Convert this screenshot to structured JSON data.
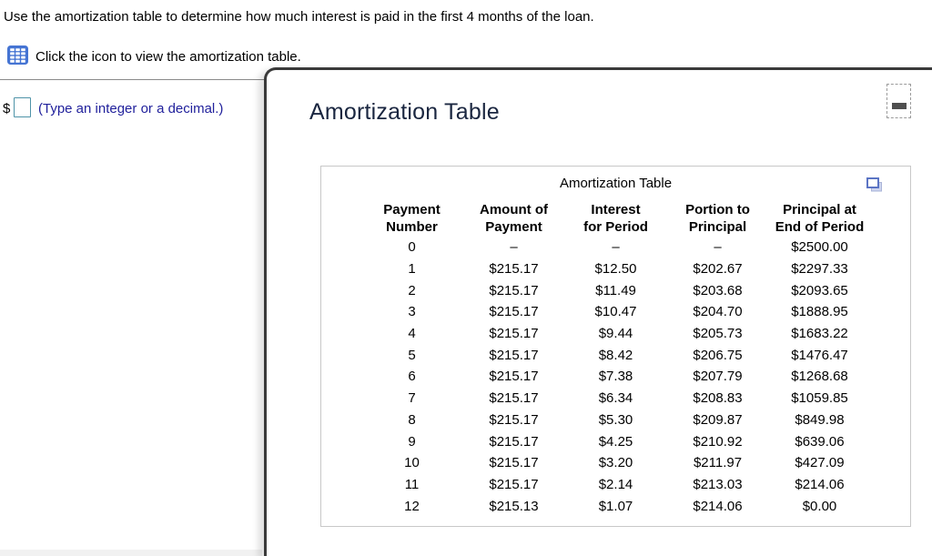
{
  "question": {
    "prompt": "Use the amortization table to determine how much interest is paid in the first 4 months of the loan.",
    "icon_instruction": "Click the icon to view the amortization table.",
    "answer_prefix": "$",
    "answer_value": "",
    "answer_hint": "(Type an integer or a decimal.)"
  },
  "popup": {
    "title": "Amortization Table"
  },
  "table": {
    "caption": "Amortization Table",
    "columns": [
      {
        "line1": "Payment",
        "line2": "Number"
      },
      {
        "line1": "Amount of",
        "line2": "Payment"
      },
      {
        "line1": "Interest",
        "line2": "for Period"
      },
      {
        "line1": "Portion to",
        "line2": "Principal"
      },
      {
        "line1": "Principal at",
        "line2": "End of Period"
      }
    ],
    "rows": [
      [
        "0",
        "–",
        "–",
        "–",
        "$2500.00"
      ],
      [
        "1",
        "$215.17",
        "$12.50",
        "$202.67",
        "$2297.33"
      ],
      [
        "2",
        "$215.17",
        "$11.49",
        "$203.68",
        "$2093.65"
      ],
      [
        "3",
        "$215.17",
        "$10.47",
        "$204.70",
        "$1888.95"
      ],
      [
        "4",
        "$215.17",
        "$9.44",
        "$205.73",
        "$1683.22"
      ],
      [
        "5",
        "$215.17",
        "$8.42",
        "$206.75",
        "$1476.47"
      ],
      [
        "6",
        "$215.17",
        "$7.38",
        "$207.79",
        "$1268.68"
      ],
      [
        "7",
        "$215.17",
        "$6.34",
        "$208.83",
        "$1059.85"
      ],
      [
        "8",
        "$215.17",
        "$5.30",
        "$209.87",
        "$849.98"
      ],
      [
        "9",
        "$215.17",
        "$4.25",
        "$210.92",
        "$639.06"
      ],
      [
        "10",
        "$215.17",
        "$3.20",
        "$211.97",
        "$427.09"
      ],
      [
        "11",
        "$215.17",
        "$2.14",
        "$213.03",
        "$214.06"
      ],
      [
        "12",
        "$215.13",
        "$1.07",
        "$214.06",
        "$0.00"
      ]
    ]
  },
  "icons": {
    "table_grid_icon": "blue grid table icon",
    "popout_icon": "open-in-window overlapping squares icon",
    "minimize_icon": "minus bar"
  },
  "colors": {
    "icon_blue": "#4574d3",
    "hint_blue": "#21219c",
    "title_navy": "#1a2640",
    "panel_border": "#3a3a3a",
    "table_border": "#c8c8c8",
    "input_border": "#4e93a8",
    "divider_gray": "#8a8a8a"
  }
}
